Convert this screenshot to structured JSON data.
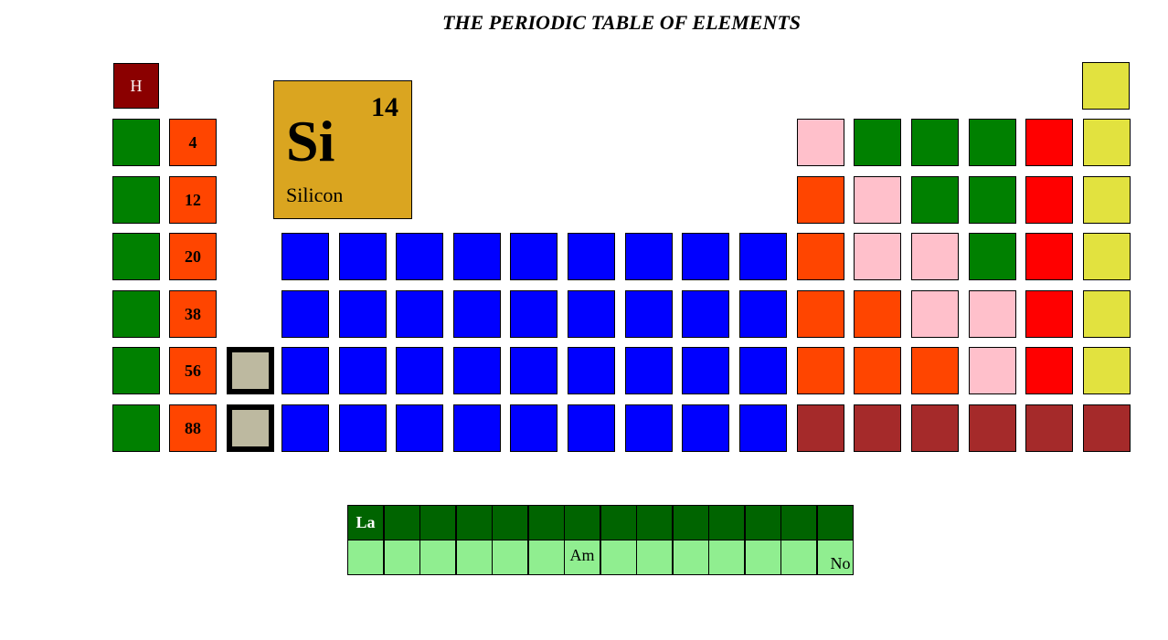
{
  "title": "THE PERIODIC TABLE OF ELEMENTS",
  "colors": {
    "hydrogen": "#8b0000",
    "alkali": "#008000",
    "alkaline_earth": "#ff4500",
    "transition": "#0000ff",
    "metalloid": "#ffc0cb",
    "halogen": "#ff0000",
    "noble_gas": "#e2e23f",
    "unknown": "#a52a2a",
    "placeholder": "#bdb9a0",
    "selected": "#daa520",
    "lanthanide": "#006400",
    "actinide": "#90ee90"
  },
  "labels": {
    "hydrogen": "H",
    "group2": [
      "4",
      "12",
      "20",
      "38",
      "56",
      "88"
    ],
    "lanthanide_first": "La",
    "actinide_am": "Am",
    "actinide_no": "No"
  },
  "selected": {
    "number": "14",
    "symbol": "Si",
    "name": "Silicon"
  }
}
